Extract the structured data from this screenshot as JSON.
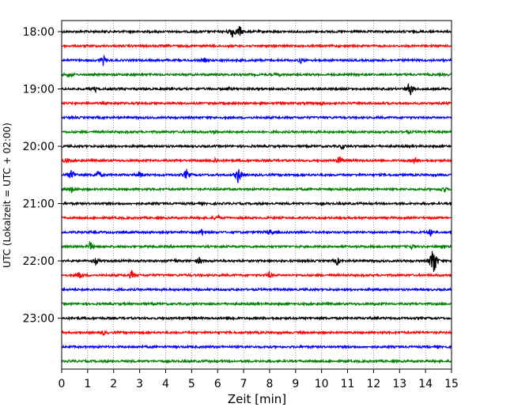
{
  "chart_data": {
    "type": "line",
    "xlabel": "Zeit  [min]",
    "ylabel": "UTC (Lokalzeit = UTC + 02:00)",
    "xlim": [
      0,
      15
    ],
    "x_ticks": [
      "0",
      "1",
      "2",
      "3",
      "4",
      "5",
      "6",
      "7",
      "8",
      "9",
      "10",
      "11",
      "12",
      "13",
      "14",
      "15"
    ],
    "y_ticks": [
      "18:00",
      "19:00",
      "20:00",
      "21:00",
      "22:00",
      "23:00"
    ],
    "grid": "vertical dotted at each minute",
    "trace_interval_min": 15,
    "trace_colors": [
      "#000000",
      "#ff0000",
      "#0000ff",
      "#008000"
    ],
    "traces": [
      {
        "time": "18:00",
        "color": "#000000",
        "events": [
          {
            "x": 6.55,
            "amp": 9
          },
          {
            "x": 6.85,
            "amp": 8
          }
        ]
      },
      {
        "time": "18:15",
        "color": "#ff0000",
        "events": []
      },
      {
        "time": "18:30",
        "color": "#0000ff",
        "events": [
          {
            "x": 1.6,
            "amp": 6
          },
          {
            "x": 5.5,
            "amp": 2
          },
          {
            "x": 9.2,
            "amp": 3
          }
        ]
      },
      {
        "time": "18:45",
        "color": "#008000",
        "events": [
          {
            "x": 0.3,
            "amp": 4
          },
          {
            "x": 8.3,
            "amp": 2
          }
        ]
      },
      {
        "time": "19:00",
        "color": "#000000",
        "events": [
          {
            "x": 1.3,
            "amp": 3
          },
          {
            "x": 6.4,
            "amp": 2
          },
          {
            "x": 13.4,
            "amp": 12
          }
        ]
      },
      {
        "time": "19:15",
        "color": "#ff0000",
        "events": [
          {
            "x": 10.0,
            "amp": 2
          }
        ]
      },
      {
        "time": "19:30",
        "color": "#0000ff",
        "events": []
      },
      {
        "time": "19:45",
        "color": "#008000",
        "events": [
          {
            "x": 5.9,
            "amp": 2
          },
          {
            "x": 13.3,
            "amp": 2
          }
        ]
      },
      {
        "time": "20:00",
        "color": "#000000",
        "events": [
          {
            "x": 10.8,
            "amp": 3
          }
        ]
      },
      {
        "time": "20:15",
        "color": "#ff0000",
        "events": [
          {
            "x": 0.2,
            "amp": 3
          },
          {
            "x": 5.9,
            "amp": 3
          },
          {
            "x": 10.7,
            "amp": 7
          },
          {
            "x": 13.6,
            "amp": 4
          }
        ]
      },
      {
        "time": "20:30",
        "color": "#0000ff",
        "events": [
          {
            "x": 0.4,
            "amp": 9
          },
          {
            "x": 1.4,
            "amp": 6
          },
          {
            "x": 3.0,
            "amp": 5
          },
          {
            "x": 4.8,
            "amp": 7
          },
          {
            "x": 6.8,
            "amp": 13
          }
        ]
      },
      {
        "time": "20:45",
        "color": "#008000",
        "events": [
          {
            "x": 0.4,
            "amp": 4
          },
          {
            "x": 14.7,
            "amp": 4
          }
        ]
      },
      {
        "time": "21:00",
        "color": "#000000",
        "events": []
      },
      {
        "time": "21:15",
        "color": "#ff0000",
        "events": [
          {
            "x": 6.0,
            "amp": 4
          }
        ]
      },
      {
        "time": "21:30",
        "color": "#0000ff",
        "events": [
          {
            "x": 5.4,
            "amp": 4
          },
          {
            "x": 8.0,
            "amp": 4
          },
          {
            "x": 14.2,
            "amp": 5
          }
        ]
      },
      {
        "time": "21:45",
        "color": "#008000",
        "events": [
          {
            "x": 1.1,
            "amp": 6
          },
          {
            "x": 13.5,
            "amp": 3
          }
        ]
      },
      {
        "time": "22:00",
        "color": "#000000",
        "events": [
          {
            "x": 1.3,
            "amp": 4
          },
          {
            "x": 4.3,
            "amp": 3
          },
          {
            "x": 5.3,
            "amp": 4
          },
          {
            "x": 10.6,
            "amp": 5
          },
          {
            "x": 14.3,
            "amp": 30
          }
        ]
      },
      {
        "time": "22:15",
        "color": "#ff0000",
        "events": [
          {
            "x": 0.7,
            "amp": 5
          },
          {
            "x": 2.7,
            "amp": 6
          },
          {
            "x": 8.0,
            "amp": 4
          }
        ]
      },
      {
        "time": "22:30",
        "color": "#0000ff",
        "events": []
      },
      {
        "time": "22:45",
        "color": "#008000",
        "events": []
      },
      {
        "time": "23:00",
        "color": "#000000",
        "events": [
          {
            "x": 6.6,
            "amp": 2
          }
        ]
      },
      {
        "time": "23:15",
        "color": "#ff0000",
        "events": [
          {
            "x": 1.6,
            "amp": 3
          }
        ]
      },
      {
        "time": "23:30",
        "color": "#0000ff",
        "events": []
      },
      {
        "time": "23:45",
        "color": "#008000",
        "events": []
      }
    ]
  }
}
